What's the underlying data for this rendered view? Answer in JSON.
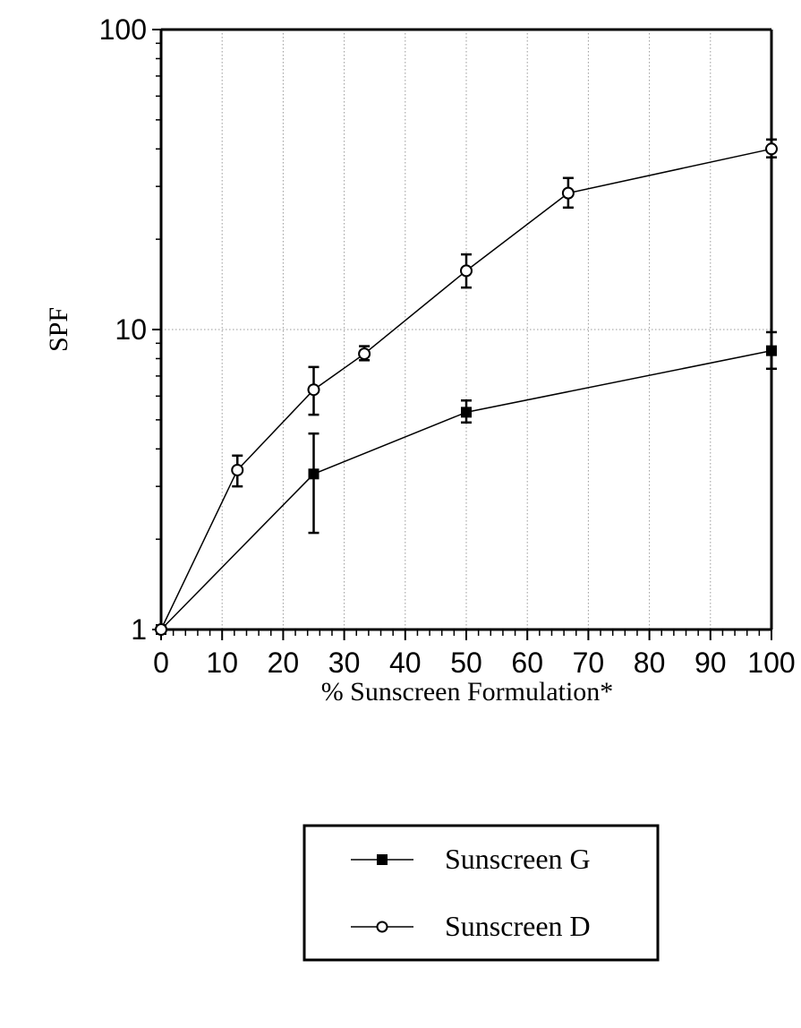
{
  "chart_data": {
    "type": "line",
    "xlabel": "% Sunscreen Formulation*",
    "ylabel": "SPF",
    "xlim": [
      0,
      100
    ],
    "ylim": [
      1,
      100
    ],
    "yscale": "log",
    "grid": true,
    "legend_position": "bottom-center",
    "x_ticks": [
      0,
      10,
      20,
      30,
      40,
      50,
      60,
      70,
      80,
      90,
      100
    ],
    "y_ticks": [
      1,
      10,
      100
    ],
    "series": [
      {
        "name": "Sunscreen G",
        "marker": "filled-square",
        "color": "#000000",
        "points": [
          {
            "x": 0,
            "y": 1.0,
            "err_low": 1.0,
            "err_high": 1.0
          },
          {
            "x": 25,
            "y": 3.3,
            "err_low": 2.1,
            "err_high": 4.5
          },
          {
            "x": 50,
            "y": 5.3,
            "err_low": 4.9,
            "err_high": 5.8
          },
          {
            "x": 100,
            "y": 8.5,
            "err_low": 7.4,
            "err_high": 9.8
          }
        ]
      },
      {
        "name": "Sunscreen D",
        "marker": "open-circle",
        "color": "#000000",
        "points": [
          {
            "x": 0,
            "y": 1.0,
            "err_low": 1.0,
            "err_high": 1.0
          },
          {
            "x": 12.5,
            "y": 3.4,
            "err_low": 3.0,
            "err_high": 3.8
          },
          {
            "x": 25,
            "y": 6.3,
            "err_low": 5.2,
            "err_high": 7.5
          },
          {
            "x": 33.3,
            "y": 8.3,
            "err_low": 7.9,
            "err_high": 8.8
          },
          {
            "x": 50,
            "y": 15.7,
            "err_low": 13.8,
            "err_high": 17.8
          },
          {
            "x": 66.7,
            "y": 28.5,
            "err_low": 25.5,
            "err_high": 32.0
          },
          {
            "x": 100,
            "y": 40.0,
            "err_low": 37.5,
            "err_high": 43.0
          }
        ]
      }
    ]
  }
}
